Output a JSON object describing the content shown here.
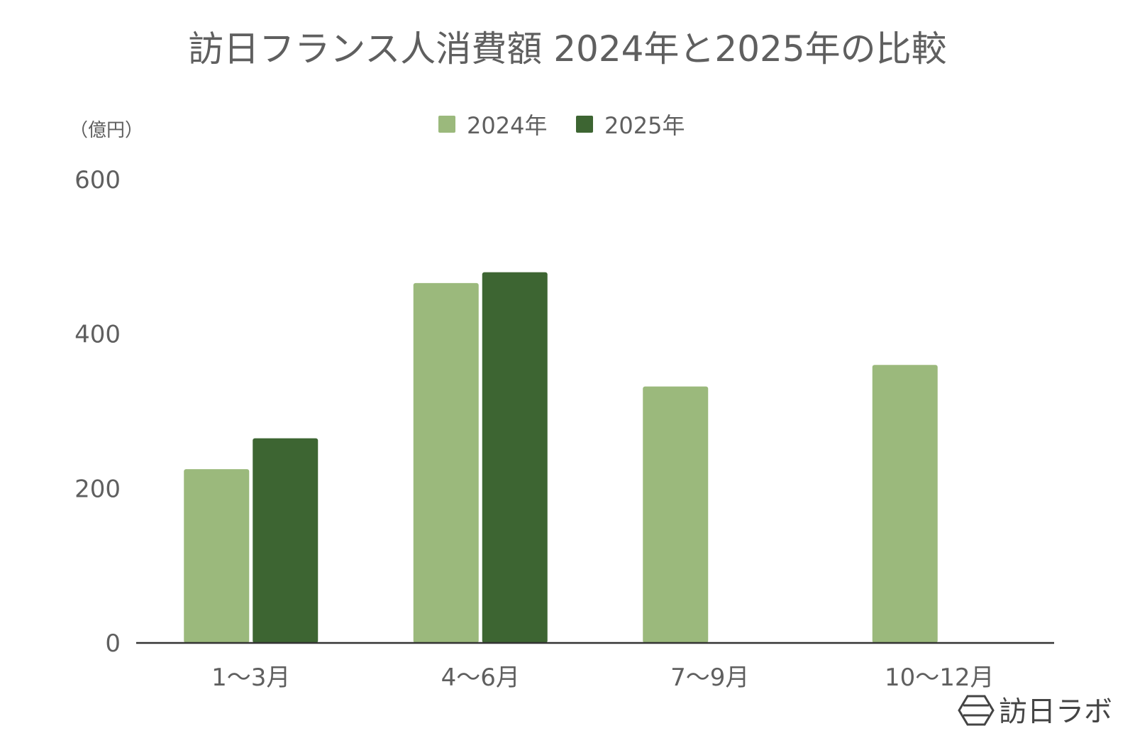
{
  "chart_data": {
    "type": "bar",
    "title": "訪日フランス人消費額 2024年と2025年の比較",
    "unit_label": "（億円）",
    "categories": [
      "1〜3月",
      "4〜6月",
      "7〜9月",
      "10〜12月"
    ],
    "series": [
      {
        "name": "2024年",
        "color": "#9bb97c",
        "values": [
          225,
          466,
          332,
          360
        ]
      },
      {
        "name": "2025年",
        "color": "#3d6532",
        "values": [
          265,
          480,
          null,
          null
        ]
      }
    ],
    "yticks": [
      0,
      200,
      400,
      600
    ],
    "ylim": [
      0,
      600
    ],
    "legend_position": "top-center",
    "grid": false
  },
  "brand": {
    "name": "訪日ラボ",
    "icon": "hexagon-logo-icon"
  },
  "colors": {
    "axis": "#333333",
    "text": "#5f5f5f"
  }
}
